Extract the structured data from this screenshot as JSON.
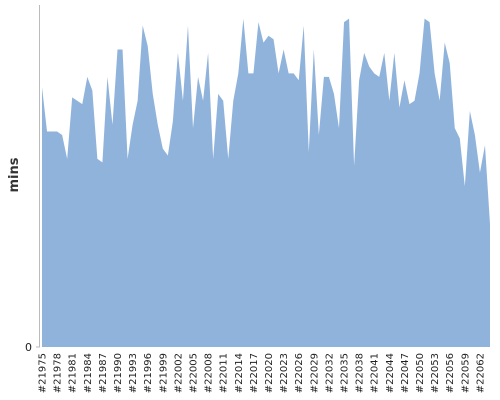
{
  "chart_data": {
    "type": "area",
    "y_label": "mins",
    "color": "#90b3dc",
    "categories": [
      "#21975",
      null,
      null,
      "#21978",
      null,
      null,
      "#21981",
      null,
      null,
      "#21984",
      null,
      null,
      "#21987",
      null,
      null,
      "#21990",
      null,
      null,
      "#21993",
      null,
      null,
      "#21996",
      null,
      null,
      "#21999",
      null,
      null,
      "#22002",
      null,
      null,
      "#22005",
      null,
      null,
      "#22008",
      null,
      null,
      "#22011",
      null,
      null,
      "#22014",
      null,
      null,
      "#22017",
      null,
      null,
      "#22020",
      null,
      null,
      "#22023",
      null,
      null,
      "#22026",
      null,
      null,
      "#22029",
      null,
      null,
      "#22032",
      null,
      null,
      "#22035",
      null,
      null,
      "#22038",
      null,
      null,
      "#22041",
      null,
      null,
      "#22044",
      null,
      null,
      "#22047",
      null,
      null,
      "#22050",
      null,
      null,
      "#22053",
      null,
      null,
      "#22056",
      null,
      null,
      "#22059",
      null,
      null,
      "#22062",
      null,
      null
    ],
    "values": [
      76,
      63,
      63,
      63,
      62,
      55,
      73,
      72,
      71,
      79,
      75,
      55,
      54,
      79,
      65,
      87,
      87,
      55,
      65,
      72,
      94,
      88,
      74,
      65,
      58,
      56,
      66,
      86,
      72,
      94,
      64,
      79,
      72,
      86,
      55,
      74,
      72,
      55,
      72,
      80,
      96,
      80,
      80,
      95,
      89,
      91,
      90,
      80,
      87,
      80,
      80,
      78,
      94,
      57,
      87,
      62,
      79,
      79,
      74,
      64,
      95,
      96,
      53,
      78,
      86,
      82,
      80,
      79,
      86,
      72,
      86,
      70,
      78,
      71,
      72,
      80,
      96,
      95,
      80,
      72,
      89,
      83,
      64,
      61,
      47,
      69,
      62,
      51,
      59,
      36
    ],
    "ylim": [
      0,
      100
    ],
    "yticks": [
      0
    ]
  }
}
